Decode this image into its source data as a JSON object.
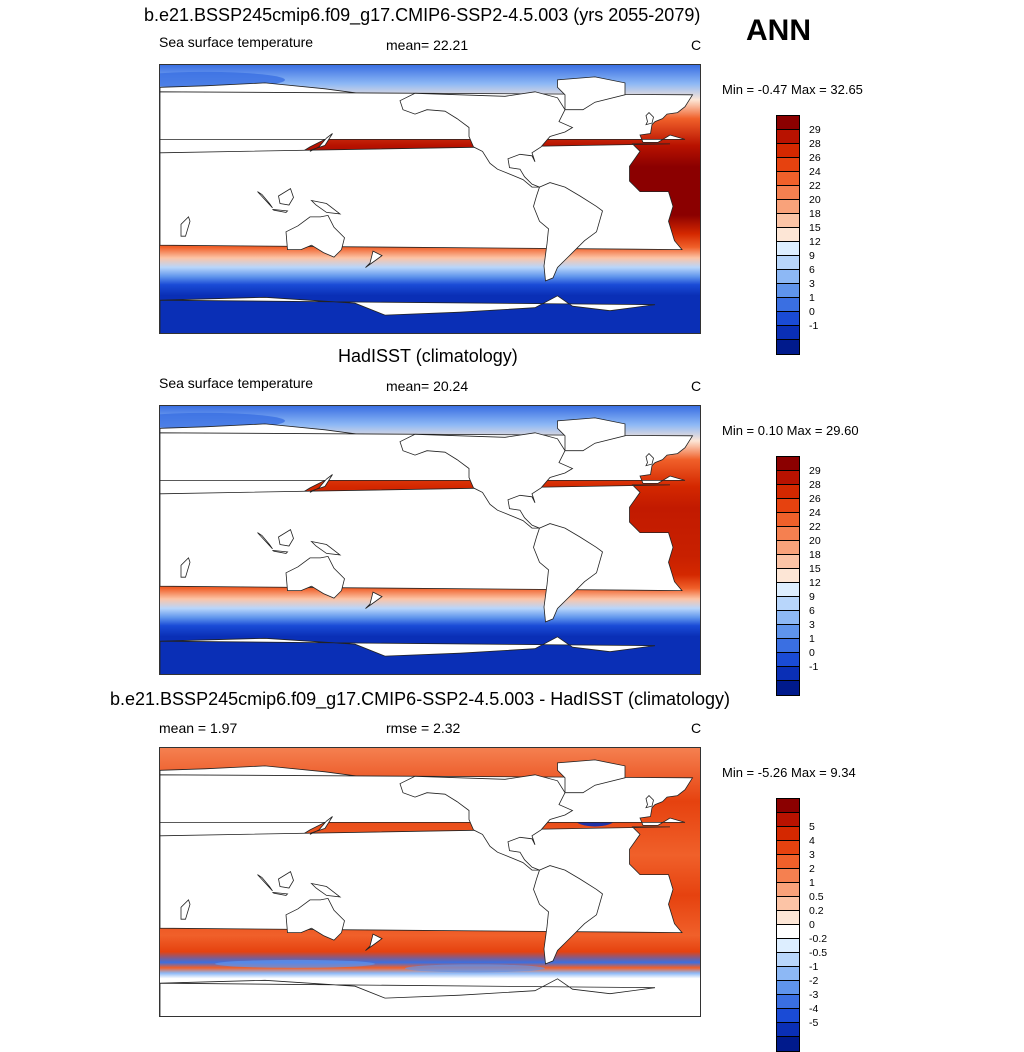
{
  "ann_label": "ANN",
  "panels": [
    {
      "title": "b.e21.BSSP245cmip6.f09_g17.CMIP6-SSP2-4.5.003 (yrs 2055-2079)",
      "subtitle_left": "Sea surface temperature",
      "subtitle_mid": "mean=  22.21",
      "units": "C",
      "minmax": "Min =  -0.47 Max =  32.65",
      "field": "sst_model",
      "colors": [
        "#8b0000",
        "#b81200",
        "#d42800",
        "#e6420f",
        "#f0602a",
        "#f58050",
        "#f9a27a",
        "#fcc4a6",
        "#fde6d6",
        "#ddeeff",
        "#b8d6fb",
        "#8db8f5",
        "#5f94ec",
        "#3a6fe2",
        "#1a4bd6",
        "#0a2fb6",
        "#001a8c"
      ],
      "ticks": [
        "29",
        "28",
        "26",
        "24",
        "22",
        "20",
        "18",
        "15",
        "12",
        "9",
        "6",
        "3",
        "1",
        "0",
        "-1"
      ]
    },
    {
      "title": "HadISST (climatology)",
      "subtitle_left": "Sea surface temperature",
      "subtitle_mid": "mean=  20.24",
      "units": "C",
      "minmax": "Min =   0.10 Max =  29.60",
      "field": "sst_obs",
      "colors": [
        "#8b0000",
        "#b81200",
        "#d42800",
        "#e6420f",
        "#f0602a",
        "#f58050",
        "#f9a27a",
        "#fcc4a6",
        "#fde6d6",
        "#ddeeff",
        "#b8d6fb",
        "#8db8f5",
        "#5f94ec",
        "#3a6fe2",
        "#1a4bd6",
        "#0a2fb6",
        "#001a8c"
      ],
      "ticks": [
        "29",
        "28",
        "26",
        "24",
        "22",
        "20",
        "18",
        "15",
        "12",
        "9",
        "6",
        "3",
        "1",
        "0",
        "-1"
      ]
    },
    {
      "title": "b.e21.BSSP245cmip6.f09_g17.CMIP6-SSP2-4.5.003 - HadISST (climatology)",
      "subtitle_left": "mean =   1.97",
      "subtitle_mid": "rmse =   2.32",
      "units": "C",
      "minmax": "Min =  -5.26 Max =   9.34",
      "field": "diff",
      "colors": [
        "#8b0000",
        "#b81200",
        "#d42800",
        "#e6420f",
        "#f0602a",
        "#f58050",
        "#f9a27a",
        "#fcc4a6",
        "#fde6d6",
        "#ffffff",
        "#ddeeff",
        "#b8d6fb",
        "#8db8f5",
        "#5f94ec",
        "#3a6fe2",
        "#1a4bd6",
        "#0a2fb6",
        "#001a8c"
      ],
      "ticks": [
        "5",
        "4",
        "3",
        "2",
        "1",
        "0.5",
        "0.2",
        "0",
        "-0.2",
        "-0.5",
        "-1",
        "-2",
        "-3",
        "-4",
        "-5"
      ]
    }
  ]
}
